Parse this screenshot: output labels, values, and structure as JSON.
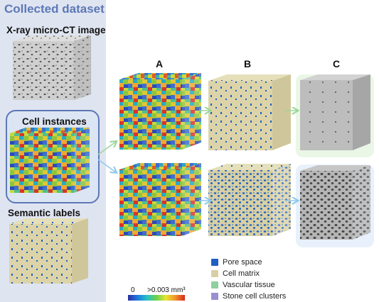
{
  "panel": {
    "title": "Collected dataset",
    "xray_label": "X-ray micro-CT image",
    "instances_label": "Cell instances",
    "semantic_label": "Semantic labels"
  },
  "columns": [
    "A",
    "B",
    "C"
  ],
  "legend": [
    {
      "label": "Pore space",
      "color": "#1f5fc2"
    },
    {
      "label": "Cell matrix",
      "color": "#d8d0a4"
    },
    {
      "label": "Vascular tissue",
      "color": "#8fcfa0"
    },
    {
      "label": "Stone cell clusters",
      "color": "#9a8fd0"
    }
  ],
  "colorbar": {
    "min_label": "0",
    "max_label": ">0.003 mm³"
  },
  "colors": {
    "accent": "#5c78b6",
    "panel_bg": "#dfe4f1",
    "arrow_green": "#9ad79a",
    "arrow_blue": "#8ec9ea"
  }
}
